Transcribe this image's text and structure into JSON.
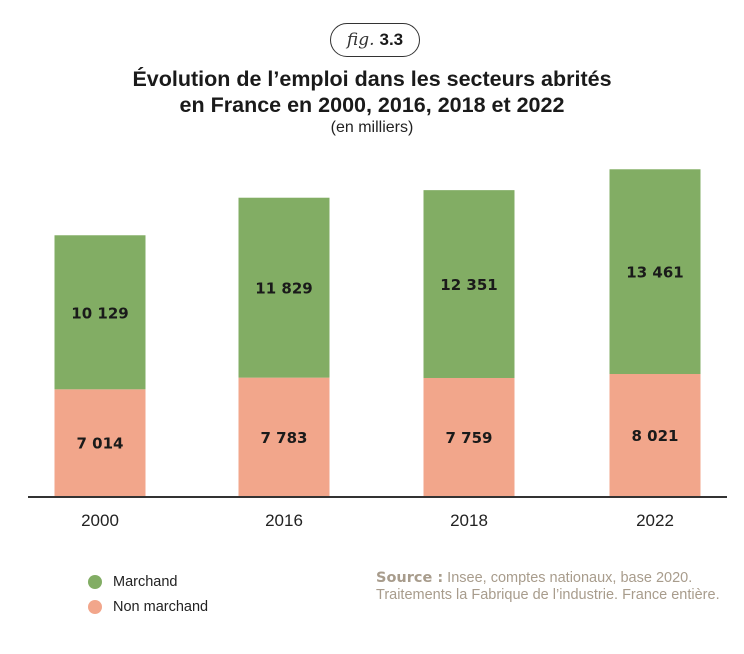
{
  "figure": {
    "label_word": "fig.",
    "label_number": "3.3"
  },
  "chart_data": {
    "type": "bar",
    "stacked": true,
    "title": "Évolution de l’emploi dans les secteurs abrités en France en 2000, 2016, 2018 et 2022",
    "title_lines": [
      "Évolution de l’emploi dans les secteurs abrités",
      "en France en 2000, 2016, 2018 et 2022"
    ],
    "subtitle": "(en milliers)",
    "categories": [
      "2000",
      "2016",
      "2018",
      "2022"
    ],
    "series": [
      {
        "name": "Non marchand",
        "color": "#f2a68b",
        "values": [
          7014,
          7783,
          7759,
          8021
        ],
        "labels": [
          "7 014",
          "7 783",
          "7 759",
          "8 021"
        ]
      },
      {
        "name": "Marchand",
        "color": "#82ad64",
        "values": [
          10129,
          11829,
          12351,
          13461
        ],
        "labels": [
          "10 129",
          "11 829",
          "12 351",
          "13 461"
        ]
      }
    ],
    "xlabel": "",
    "ylabel": "",
    "ylim": [
      0,
      21500
    ],
    "grid": false,
    "legend_position": "bottom-left"
  },
  "legend": [
    {
      "label": "Marchand",
      "color": "#82ad64"
    },
    {
      "label": "Non marchand",
      "color": "#f2a68b"
    }
  ],
  "source": {
    "label": "Source :",
    "text": " Insee, comptes nationaux, base 2020. Traitements la Fabrique de l’industrie. France entière."
  }
}
